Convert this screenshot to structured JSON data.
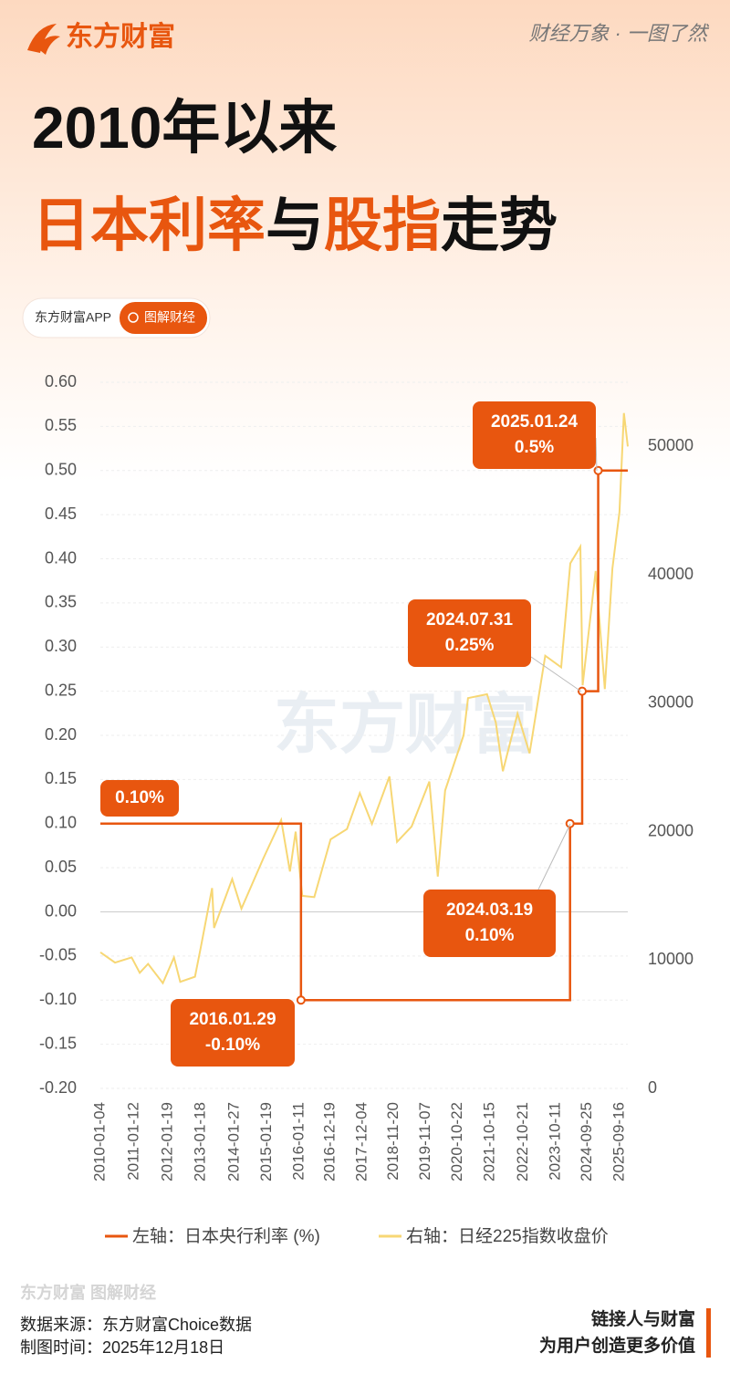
{
  "header": {
    "logo": "东方财富",
    "slogan": "财经万象 · 一图了然",
    "title_line1": "2010年以来",
    "title_line2": [
      "日本利率",
      "与",
      "股指",
      "走势"
    ],
    "tag_app": "东方财富APP",
    "tag_topic": "图解财经"
  },
  "chart_data": {
    "type": "line",
    "watermark": "东方财富",
    "xlim": [
      "2010-01-04",
      "2025-12-17"
    ],
    "xticks": [
      "2010-01-04",
      "2011-01-12",
      "2012-01-19",
      "2013-01-18",
      "2014-01-27",
      "2015-01-19",
      "2016-01-11",
      "2016-12-19",
      "2017-12-04",
      "2018-11-20",
      "2019-11-07",
      "2020-10-22",
      "2021-10-15",
      "2022-10-21",
      "2023-10-11",
      "2024-09-25",
      "2025-09-16"
    ],
    "ylim": [
      -0.2,
      0.6
    ],
    "yticks": [
      {
        "value": -0.2,
        "label": "-0.20"
      },
      {
        "value": -0.15,
        "label": "-0.15"
      },
      {
        "value": -0.1,
        "label": "-0.10"
      },
      {
        "value": -0.05,
        "label": "-0.05"
      },
      {
        "value": 0,
        "label": "0.00"
      },
      {
        "value": 0.05,
        "label": "0.05"
      },
      {
        "value": 0.1,
        "label": "0.10"
      },
      {
        "value": 0.15,
        "label": "0.15"
      },
      {
        "value": 0.2,
        "label": "0.20"
      },
      {
        "value": 0.25,
        "label": "0.25"
      },
      {
        "value": 0.3,
        "label": "0.30"
      },
      {
        "value": 0.35,
        "label": "0.35"
      },
      {
        "value": 0.4,
        "label": "0.40"
      },
      {
        "value": 0.45,
        "label": "0.45"
      },
      {
        "value": 0.5,
        "label": "0.50"
      },
      {
        "value": 0.55,
        "label": "0.55"
      },
      {
        "value": 0.6,
        "label": "0.60"
      }
    ],
    "y2lim": [
      0,
      55000
    ],
    "y2ticks": [
      0,
      10000,
      20000,
      30000,
      40000,
      50000
    ],
    "grid": true,
    "series": [
      {
        "name": "左轴：日本央行利率 (%)",
        "color": "#e8560f",
        "step": "post",
        "x": [
          "2010-01-04",
          "2016-01-29",
          "2024-03-19",
          "2024-07-31",
          "2025-01-24",
          "2025-12-17"
        ],
        "values": [
          0.1,
          -0.1,
          0.1,
          0.25,
          0.5,
          0.5
        ]
      },
      {
        "name": "右轴：日经225指数收盘价",
        "color": "#f7d774",
        "axis": "y2",
        "x": [
          "2010-01-04",
          "2010-06-15",
          "2010-12-15",
          "2011-03-15",
          "2011-06-15",
          "2011-11-25",
          "2012-03-27",
          "2012-06-04",
          "2012-11-14",
          "2013-01-15",
          "2013-05-22",
          "2013-06-13",
          "2013-12-30",
          "2014-04-11",
          "2014-12-08",
          "2015-06-24",
          "2015-09-29",
          "2015-12-01",
          "2016-02-12",
          "2016-06-24",
          "2016-12-21",
          "2017-06-20",
          "2017-11-09",
          "2018-03-23",
          "2018-10-02",
          "2018-12-25",
          "2019-06-04",
          "2019-12-17",
          "2020-03-19",
          "2020-06-08",
          "2020-12-29",
          "2021-02-16",
          "2021-09-14",
          "2021-12-20",
          "2022-03-08",
          "2022-08-17",
          "2022-12-28",
          "2023-06-19",
          "2023-12-12",
          "2024-03-22",
          "2024-07-11",
          "2024-08-05",
          "2024-12-27",
          "2025-04-07",
          "2025-06-30",
          "2025-09-16",
          "2025-11-04",
          "2025-12-17"
        ],
        "values": [
          10600,
          9800,
          10200,
          9000,
          9700,
          8200,
          10200,
          8300,
          8700,
          10900,
          15600,
          12500,
          16300,
          14000,
          17900,
          20900,
          16900,
          20000,
          15000,
          14900,
          19400,
          20200,
          23000,
          20600,
          24300,
          19200,
          20400,
          23900,
          16500,
          23200,
          27500,
          30400,
          30700,
          28500,
          24700,
          29200,
          26100,
          33700,
          32800,
          40900,
          42200,
          31400,
          40300,
          31100,
          40500,
          44900,
          52600,
          50000
        ]
      }
    ],
    "annotations": [
      {
        "lines": [
          "2025.01.24",
          "0.5%"
        ]
      },
      {
        "lines": [
          "2024.07.31",
          "0.25%"
        ]
      },
      {
        "lines": [
          "2024.03.19",
          "0.10%"
        ]
      },
      {
        "lines": [
          "2016.01.29",
          "-0.10%"
        ]
      },
      {
        "lines": [
          "0.10%"
        ]
      }
    ]
  },
  "footer": {
    "logo": "东方财富 图解财经",
    "source": "数据来源：东方财富Choice数据",
    "made": "制图时间：2025年12月18日",
    "slogan1": "链接人与财富",
    "slogan2": "为用户创造更多价值"
  }
}
